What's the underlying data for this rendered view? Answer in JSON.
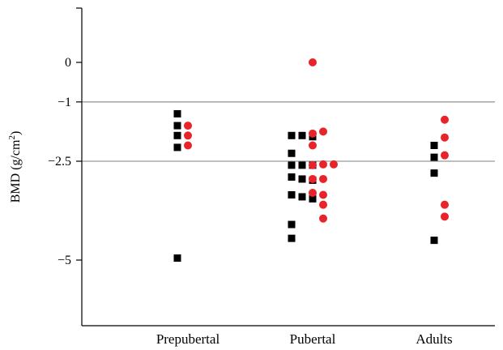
{
  "chart_data": {
    "type": "scatter",
    "title": "",
    "xlabel": "",
    "ylabel": "BMD (g/cm",
    "ylabel_sup": "2",
    "ylabel_close": ")",
    "categories": [
      "Prepubertal",
      "Pubertal",
      "Adults"
    ],
    "yticks": [
      {
        "value": 0,
        "label": "0"
      },
      {
        "value": -1,
        "label": "−1"
      },
      {
        "value": -2.5,
        "label": "−2.5"
      },
      {
        "value": -5,
        "label": "−5"
      }
    ],
    "reference_lines": [
      -1,
      -2.5
    ],
    "ylim": [
      -6.5,
      1.5
    ],
    "grid": false,
    "legend": "none",
    "colors": {
      "series_a": "#000000",
      "series_b": "#e8242a",
      "reference_line": "#aaaaaa"
    },
    "series": [
      {
        "marker": "square",
        "color": "#000000",
        "points": [
          {
            "category": "Prepubertal",
            "offset": -1,
            "y": -1.3
          },
          {
            "category": "Prepubertal",
            "offset": -1,
            "y": -1.6
          },
          {
            "category": "Prepubertal",
            "offset": -1,
            "y": -1.85
          },
          {
            "category": "Prepubertal",
            "offset": -1,
            "y": -2.15
          },
          {
            "category": "Prepubertal",
            "offset": -1,
            "y": -4.95
          },
          {
            "category": "Pubertal",
            "offset": -2,
            "y": -1.85
          },
          {
            "category": "Pubertal",
            "offset": -2,
            "y": -2.3
          },
          {
            "category": "Pubertal",
            "offset": -2,
            "y": -2.6
          },
          {
            "category": "Pubertal",
            "offset": -2,
            "y": -2.9
          },
          {
            "category": "Pubertal",
            "offset": -2,
            "y": -3.35
          },
          {
            "category": "Pubertal",
            "offset": -2,
            "y": -4.1
          },
          {
            "category": "Pubertal",
            "offset": -2,
            "y": -4.45
          },
          {
            "category": "Pubertal",
            "offset": -1,
            "y": -1.85
          },
          {
            "category": "Pubertal",
            "offset": -1,
            "y": -2.6
          },
          {
            "category": "Pubertal",
            "offset": -1,
            "y": -2.95
          },
          {
            "category": "Pubertal",
            "offset": -1,
            "y": -3.4
          },
          {
            "category": "Pubertal",
            "offset": 0,
            "y": -1.88
          },
          {
            "category": "Pubertal",
            "offset": 0,
            "y": -2.6
          },
          {
            "category": "Pubertal",
            "offset": 0,
            "y": -2.98
          },
          {
            "category": "Pubertal",
            "offset": 0,
            "y": -3.45
          },
          {
            "category": "Adults",
            "offset": 0,
            "y": -2.1
          },
          {
            "category": "Adults",
            "offset": 0,
            "y": -2.4
          },
          {
            "category": "Adults",
            "offset": 0,
            "y": -2.8
          },
          {
            "category": "Adults",
            "offset": 0,
            "y": -4.5
          }
        ]
      },
      {
        "marker": "circle",
        "color": "#e8242a",
        "points": [
          {
            "category": "Prepubertal",
            "offset": 0,
            "y": -1.6
          },
          {
            "category": "Prepubertal",
            "offset": 0,
            "y": -1.85
          },
          {
            "category": "Prepubertal",
            "offset": 0,
            "y": -2.1
          },
          {
            "category": "Pubertal",
            "offset": 0,
            "y": 0
          },
          {
            "category": "Pubertal",
            "offset": 0,
            "y": -1.8
          },
          {
            "category": "Pubertal",
            "offset": 0,
            "y": -2.1
          },
          {
            "category": "Pubertal",
            "offset": 0,
            "y": -2.6
          },
          {
            "category": "Pubertal",
            "offset": 0,
            "y": -2.95
          },
          {
            "category": "Pubertal",
            "offset": 0,
            "y": -3.3
          },
          {
            "category": "Pubertal",
            "offset": 1,
            "y": -1.75
          },
          {
            "category": "Pubertal",
            "offset": 1,
            "y": -2.58
          },
          {
            "category": "Pubertal",
            "offset": 1,
            "y": -2.95
          },
          {
            "category": "Pubertal",
            "offset": 1,
            "y": -3.35
          },
          {
            "category": "Pubertal",
            "offset": 1,
            "y": -3.6
          },
          {
            "category": "Pubertal",
            "offset": 1,
            "y": -3.95
          },
          {
            "category": "Pubertal",
            "offset": 2,
            "y": -2.58
          },
          {
            "category": "Adults",
            "offset": 1,
            "y": -1.45
          },
          {
            "category": "Adults",
            "offset": 1,
            "y": -1.9
          },
          {
            "category": "Adults",
            "offset": 1,
            "y": -2.35
          },
          {
            "category": "Adults",
            "offset": 1,
            "y": -3.6
          },
          {
            "category": "Adults",
            "offset": 1,
            "y": -3.9
          }
        ]
      }
    ]
  }
}
